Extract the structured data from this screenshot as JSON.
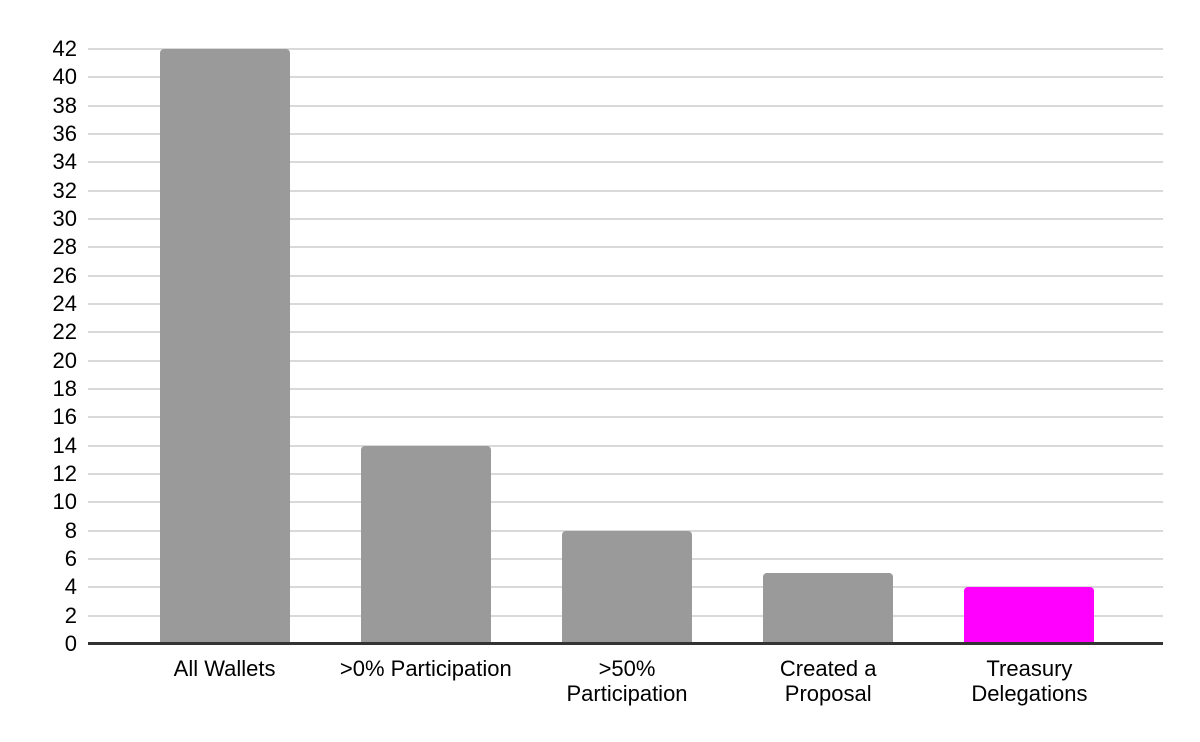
{
  "chart_data": {
    "type": "bar",
    "title": "",
    "xlabel": "",
    "ylabel": "",
    "categories": [
      "All Wallets",
      ">0% Participation",
      ">50% Participation",
      "Created a Proposal",
      "Treasury Delegations"
    ],
    "category_lines": [
      [
        "All Wallets"
      ],
      [
        ">0% Participation"
      ],
      [
        ">50%",
        "Participation"
      ],
      [
        "Created a",
        "Proposal"
      ],
      [
        "Treasury",
        "Delegations"
      ]
    ],
    "values": [
      42,
      14,
      8,
      5,
      4
    ],
    "bar_colors": [
      "#9a9a9a",
      "#9a9a9a",
      "#9a9a9a",
      "#9a9a9a",
      "#ff00ff"
    ],
    "ylim": [
      0,
      42
    ],
    "ytick_step": 2,
    "yticks": [
      0,
      2,
      4,
      6,
      8,
      10,
      12,
      14,
      16,
      18,
      20,
      22,
      24,
      26,
      28,
      30,
      32,
      34,
      36,
      38,
      40,
      42
    ],
    "grid": "horizontal",
    "legend": "none",
    "colors": {
      "background": "#ffffff",
      "gridline": "#d9d9d9",
      "axis_line": "#333333",
      "tick_text": "#000000",
      "bar_default": "#9a9a9a",
      "bar_highlight": "#ff00ff"
    }
  }
}
